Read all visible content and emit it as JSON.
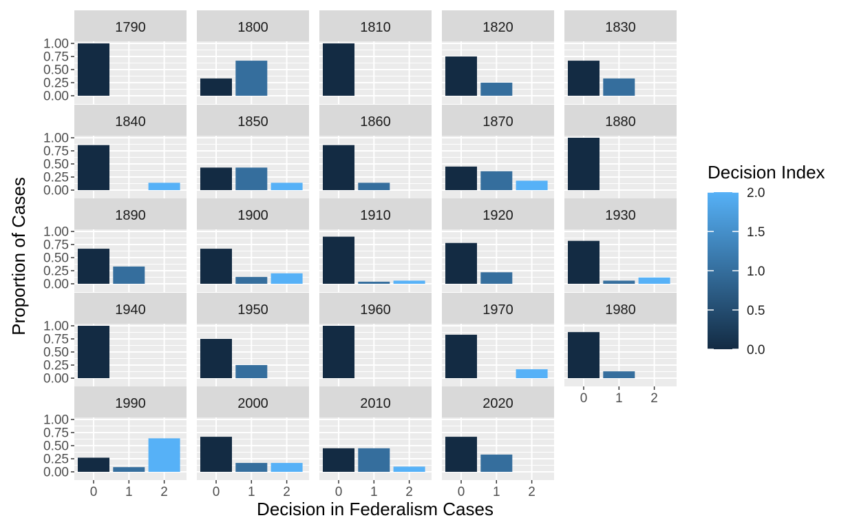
{
  "chart_data": {
    "type": "bar",
    "facet_variable": "decade",
    "categories": [
      "0",
      "1",
      "2"
    ],
    "xlabel": "Decision in Federalism Cases",
    "ylabel": "Proportion of Cases",
    "ylim": [
      0,
      1
    ],
    "y_ticks": [
      "0.00",
      "0.25",
      "0.50",
      "0.75",
      "1.00"
    ],
    "grid": true,
    "legend": {
      "title": "Decision Index",
      "position": "right",
      "type": "colorbar",
      "ticks": [
        "0.0",
        "0.5",
        "1.0",
        "1.5",
        "2.0"
      ],
      "range": [
        0,
        2
      ],
      "color_low": "#132B43",
      "color_high": "#56B1F7"
    },
    "panels": [
      {
        "label": "1790",
        "values": [
          1.0,
          0,
          0
        ]
      },
      {
        "label": "1800",
        "values": [
          0.33,
          0.67,
          0
        ]
      },
      {
        "label": "1810",
        "values": [
          1.0,
          0,
          0
        ]
      },
      {
        "label": "1820",
        "values": [
          0.75,
          0.25,
          0
        ]
      },
      {
        "label": "1830",
        "values": [
          0.67,
          0.33,
          0
        ]
      },
      {
        "label": "1840",
        "values": [
          0.86,
          0,
          0.14
        ]
      },
      {
        "label": "1850",
        "values": [
          0.43,
          0.43,
          0.14
        ]
      },
      {
        "label": "1860",
        "values": [
          0.86,
          0.14,
          0
        ]
      },
      {
        "label": "1870",
        "values": [
          0.45,
          0.36,
          0.18
        ]
      },
      {
        "label": "1880",
        "values": [
          1.0,
          0,
          0
        ]
      },
      {
        "label": "1890",
        "values": [
          0.67,
          0.33,
          0
        ]
      },
      {
        "label": "1900",
        "values": [
          0.67,
          0.13,
          0.2
        ]
      },
      {
        "label": "1910",
        "values": [
          0.9,
          0.04,
          0.06
        ]
      },
      {
        "label": "1920",
        "values": [
          0.78,
          0.22,
          0
        ]
      },
      {
        "label": "1930",
        "values": [
          0.82,
          0.06,
          0.12
        ]
      },
      {
        "label": "1940",
        "values": [
          1.0,
          0,
          0
        ]
      },
      {
        "label": "1950",
        "values": [
          0.75,
          0.25,
          0
        ]
      },
      {
        "label": "1960",
        "values": [
          1.0,
          0,
          0
        ]
      },
      {
        "label": "1970",
        "values": [
          0.83,
          0,
          0.17
        ]
      },
      {
        "label": "1980",
        "values": [
          0.88,
          0.13,
          0
        ]
      },
      {
        "label": "1990",
        "values": [
          0.27,
          0.09,
          0.64
        ]
      },
      {
        "label": "2000",
        "values": [
          0.67,
          0.17,
          0.17
        ]
      },
      {
        "label": "2010",
        "values": [
          0.45,
          0.45,
          0.1
        ]
      },
      {
        "label": "2020",
        "values": [
          0.67,
          0.33,
          0
        ]
      }
    ]
  }
}
